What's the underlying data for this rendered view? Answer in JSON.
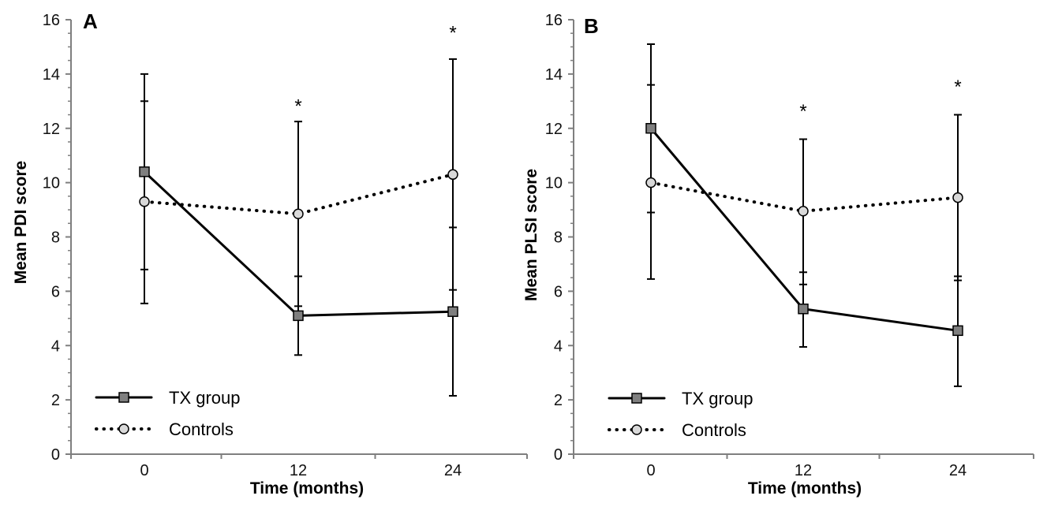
{
  "colors": {
    "axis": "#7f7f7f",
    "line": "#000000",
    "tx_marker_fill": "#7f7f7f",
    "control_marker_fill": "#d9d9d9"
  },
  "chart_data": [
    {
      "type": "line",
      "panel_label": "A",
      "xlabel": "Time (months)",
      "ylabel": "Mean PDI score",
      "x": [
        0,
        12,
        24
      ],
      "ylim": [
        0,
        16
      ],
      "yticks": [
        0,
        2,
        4,
        6,
        8,
        10,
        12,
        14,
        16
      ],
      "grid": false,
      "legend_position": "bottom-left",
      "series": [
        {
          "name": "TX group",
          "style": "solid",
          "marker": "square",
          "values": [
            10.4,
            5.1,
            5.25
          ],
          "error_low": [
            6.8,
            3.65,
            2.15
          ],
          "error_high": [
            14.0,
            6.55,
            8.35
          ]
        },
        {
          "name": "Controls",
          "style": "dotted",
          "marker": "circle",
          "values": [
            9.3,
            8.85,
            10.3
          ],
          "error_low": [
            5.55,
            5.45,
            6.05
          ],
          "error_high": [
            13.0,
            12.25,
            14.55
          ]
        }
      ],
      "annotations": [
        {
          "text": "*",
          "x": 12,
          "y": 13.0
        },
        {
          "text": "*",
          "x": 24,
          "y": 15.7
        }
      ]
    },
    {
      "type": "line",
      "panel_label": "B",
      "xlabel": "Time (months)",
      "ylabel": "Mean PLSI score",
      "x": [
        0,
        12,
        24
      ],
      "ylim": [
        0,
        16
      ],
      "yticks": [
        0,
        2,
        4,
        6,
        8,
        10,
        12,
        14,
        16
      ],
      "grid": false,
      "legend_position": "bottom-left",
      "series": [
        {
          "name": "TX group",
          "style": "solid",
          "marker": "square",
          "values": [
            12.0,
            5.35,
            4.55
          ],
          "error_low": [
            8.9,
            3.95,
            2.5
          ],
          "error_high": [
            15.1,
            6.7,
            6.55
          ]
        },
        {
          "name": "Controls",
          "style": "dotted",
          "marker": "circle",
          "values": [
            10.0,
            8.95,
            9.45
          ],
          "error_low": [
            6.45,
            6.25,
            6.4
          ],
          "error_high": [
            13.6,
            11.6,
            12.5
          ]
        }
      ],
      "annotations": [
        {
          "text": "*",
          "x": 12,
          "y": 12.8
        },
        {
          "text": "*",
          "x": 24,
          "y": 13.7
        }
      ]
    }
  ]
}
